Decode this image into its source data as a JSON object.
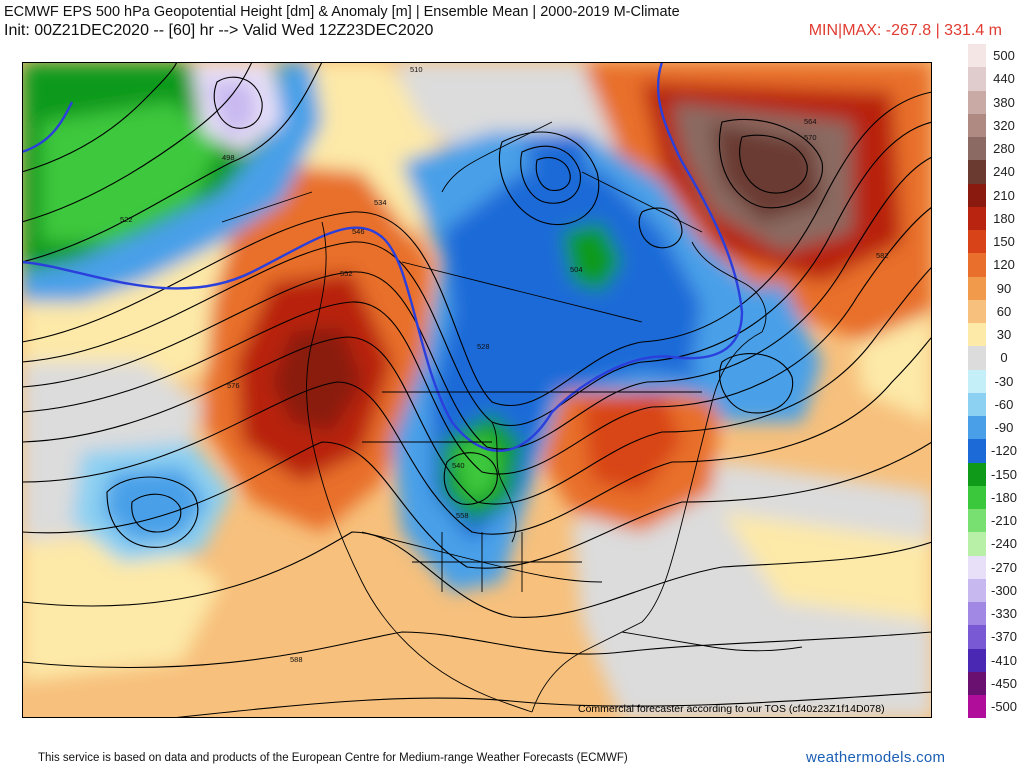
{
  "header": {
    "title": "ECMWF EPS 500 hPa Geopotential Height [dm] & Anomaly [m] | Ensemble Mean | 2000-2019 M-Climate",
    "init_line": "Init: 00Z21DEC2020 -- [60] hr --> Valid Wed 12Z23DEC2020",
    "minmax": "MIN|MAX: -267.8 | 331.4 m"
  },
  "map": {
    "credit": "Commercial forecaster according to our TOS (cf40z23Z1f14D078)",
    "contour_labels": [
      "510",
      "522",
      "534",
      "546",
      "552",
      "564",
      "570",
      "576",
      "582",
      "588",
      "498",
      "504",
      "540",
      "558",
      "528"
    ]
  },
  "colorbar": {
    "labels": [
      "500",
      "440",
      "380",
      "320",
      "280",
      "240",
      "210",
      "180",
      "150",
      "120",
      "90",
      "60",
      "30",
      "0",
      "-30",
      "-60",
      "-90",
      "-120",
      "-150",
      "-180",
      "-210",
      "-240",
      "-270",
      "-300",
      "-330",
      "-370",
      "-410",
      "-450",
      "-500"
    ],
    "colors": [
      "#f5e6e6",
      "#e0cccc",
      "#c9aaa5",
      "#ae8a82",
      "#8a6a62",
      "#6a3a30",
      "#8a1a10",
      "#b82410",
      "#d84418",
      "#e8702c",
      "#f29a4c",
      "#f7c07c",
      "#fde9a8",
      "#dcdcdc",
      "#c4eef8",
      "#8cd0f2",
      "#4aa0e8",
      "#1c6ad8",
      "#109a1a",
      "#3cc83c",
      "#78e070",
      "#b8f0a8",
      "#e8e0f8",
      "#c8b8f0",
      "#a088e4",
      "#7a5ad4",
      "#4a28b4",
      "#6a1070",
      "#b00e9a"
    ]
  },
  "footer": {
    "disclaimer": "This service is based on data and products of the European Centre for Medium-range Weather Forecasts (ECMWF)",
    "site": "weathermodels.com"
  }
}
